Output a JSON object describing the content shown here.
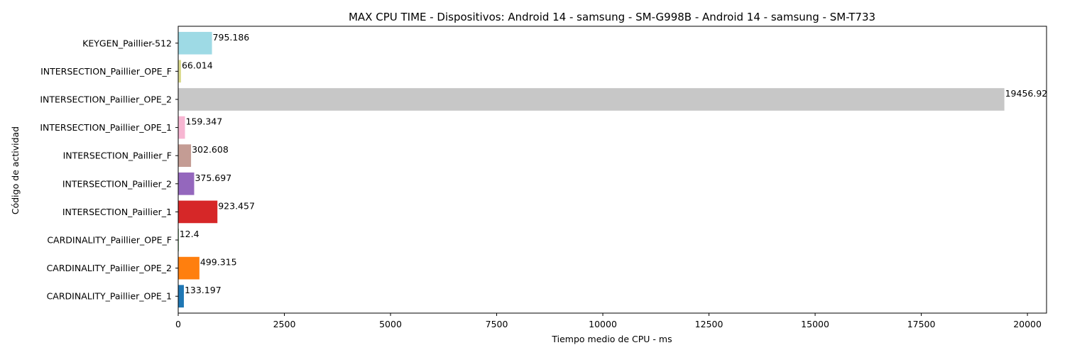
{
  "chart_data": {
    "type": "bar",
    "orientation": "horizontal",
    "title": "MAX CPU TIME - Dispositivos: Android 14 - samsung - SM-G998B - Android 14 - samsung - SM-T733",
    "xlabel": "Tiempo medio de CPU - ms",
    "ylabel": "Código de actividad",
    "xlim": [
      0,
      20450
    ],
    "xticks": [
      0,
      2500,
      5000,
      7500,
      10000,
      12500,
      15000,
      17500,
      20000
    ],
    "xtick_labels": [
      "0",
      "2500",
      "5000",
      "7500",
      "10000",
      "12500",
      "15000",
      "17500",
      "20000"
    ],
    "grid": false,
    "categories": [
      "CARDINALITY_Paillier_OPE_1",
      "CARDINALITY_Paillier_OPE_2",
      "CARDINALITY_Paillier_OPE_F",
      "INTERSECTION_Paillier_1",
      "INTERSECTION_Paillier_2",
      "INTERSECTION_Paillier_F",
      "INTERSECTION_Paillier_OPE_1",
      "INTERSECTION_Paillier_OPE_2",
      "INTERSECTION_Paillier_OPE_F",
      "KEYGEN_Paillier-512"
    ],
    "values": [
      133.197,
      499.315,
      12.4,
      923.457,
      375.697,
      302.608,
      159.347,
      19456.92,
      66.014,
      795.186
    ],
    "value_labels": [
      "133.197",
      "499.315",
      "12.4",
      "923.457",
      "375.697",
      "302.608",
      "159.347",
      "19456.92",
      "66.014",
      "795.186"
    ],
    "colors": [
      "#1f77b4",
      "#ff7f0e",
      "#2ca02c",
      "#d62728",
      "#9467bd",
      "#c49c94",
      "#f7b6d2",
      "#c7c7c7",
      "#dbdb8d",
      "#9edae5"
    ]
  }
}
